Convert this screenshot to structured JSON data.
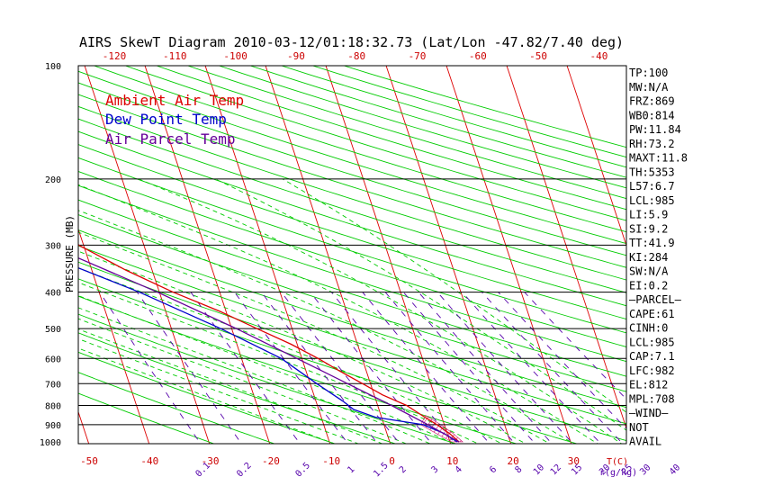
{
  "chart_data": {
    "type": "line",
    "title": "AIRS SkewT Diagram 2010-03-12/01:18:32.73 (Lat/Lon -47.82/7.40 deg)",
    "ylabel": "PRESSURE (MB)",
    "xlabel": "T(C)",
    "mixing_unit": "r(g/kg)",
    "y_scale": "log",
    "ylim": [
      1000,
      100
    ],
    "xlim": [
      -50,
      40
    ],
    "y_ticks": [
      "100",
      "200",
      "300",
      "400",
      "500",
      "600",
      "700",
      "800",
      "900",
      "1000"
    ],
    "top_ticks": [
      "-120",
      "-110",
      "-100",
      "-90",
      "-80",
      "-70",
      "-60",
      "-50",
      "-40"
    ],
    "bottom_ticks": [
      "-50",
      "-40",
      "-30",
      "-20",
      "-10",
      "0",
      "10",
      "20",
      "30"
    ],
    "mixing_ticks": [
      "0.1",
      "0.2",
      "0.5",
      "1",
      "1.5",
      "2",
      "3",
      "4",
      "6",
      "8",
      "10",
      "12",
      "15",
      "20",
      "25",
      "30",
      "40"
    ],
    "legend": [
      "Ambient Air Temp",
      "Dew Point Temp",
      "Air Parcel Temp"
    ],
    "legend_placement": "top-left",
    "series": [
      {
        "name": "Ambient Air Temp",
        "color": "#dd0000",
        "points": [
          [
            1000,
            1.5
          ],
          [
            950,
            0.4
          ],
          [
            900,
            -1.2
          ],
          [
            850,
            -3.2
          ],
          [
            800,
            -5.2
          ],
          [
            750,
            -8.6
          ],
          [
            700,
            -11.3
          ],
          [
            650,
            -14.3
          ],
          [
            600,
            -17.3
          ],
          [
            550,
            -21
          ],
          [
            500,
            -25.8
          ],
          [
            450,
            -31
          ],
          [
            400,
            -37.7
          ],
          [
            350,
            -44.3
          ],
          [
            300,
            -50.8
          ],
          [
            250,
            -52
          ],
          [
            200,
            -52
          ],
          [
            150,
            -51.5
          ],
          [
            100,
            -54
          ]
        ]
      },
      {
        "name": "Dew Point Temp",
        "color": "#0000cc",
        "points": [
          [
            1000,
            1.2
          ],
          [
            950,
            -0.5
          ],
          [
            900,
            -3.5
          ],
          [
            860,
            -11
          ],
          [
            820,
            -14.2
          ],
          [
            780,
            -15.5
          ],
          [
            700,
            -18.9
          ],
          [
            600,
            -23.4
          ],
          [
            500,
            -31.8
          ],
          [
            400,
            -43.3
          ],
          [
            300,
            -60.4
          ],
          [
            250,
            -73.1
          ],
          [
            200,
            -82.3
          ],
          [
            150,
            -86.4
          ],
          [
            100,
            -91.7
          ]
        ]
      },
      {
        "name": "Air Parcel Temp",
        "color": "#660099",
        "points": [
          [
            1000,
            1.5
          ],
          [
            950,
            -0.6
          ],
          [
            900,
            -2.7
          ],
          [
            800,
            -7.7
          ],
          [
            700,
            -13.8
          ],
          [
            600,
            -20.8
          ],
          [
            500,
            -29.2
          ],
          [
            400,
            -40.3
          ],
          [
            300,
            -55.8
          ],
          [
            250,
            -66
          ],
          [
            200,
            -77.8
          ],
          [
            150,
            -92
          ],
          [
            100,
            -110.8
          ]
        ]
      }
    ]
  },
  "indices": [
    "TP:100",
    "MW:N/A",
    "FRZ:869",
    "WB0:814",
    "PW:11.84",
    "RH:73.2",
    "MAXT:11.8",
    "TH:5353",
    "L57:6.7",
    "LCL:985",
    "LI:5.9",
    "SI:9.2",
    "TT:41.9",
    "KI:284",
    "SW:N/A",
    "EI:0.2",
    "—PARCEL—",
    "CAPE:61",
    "CINH:0",
    "LCL:985",
    "CAP:7.1",
    "LFC:982",
    "EL:812",
    "MPL:708",
    "—WIND—",
    "NOT",
    "AVAIL"
  ],
  "colors": {
    "axis": "#000000",
    "isotherm": "#dd0000",
    "dry_adiabat": "#00cc00",
    "moist_adiabat": "#00cc00",
    "mixing_ratio": "#5500aa",
    "dew_point": "#0000cc",
    "parcel": "#660099",
    "mixing_labels": "#5500aa"
  }
}
